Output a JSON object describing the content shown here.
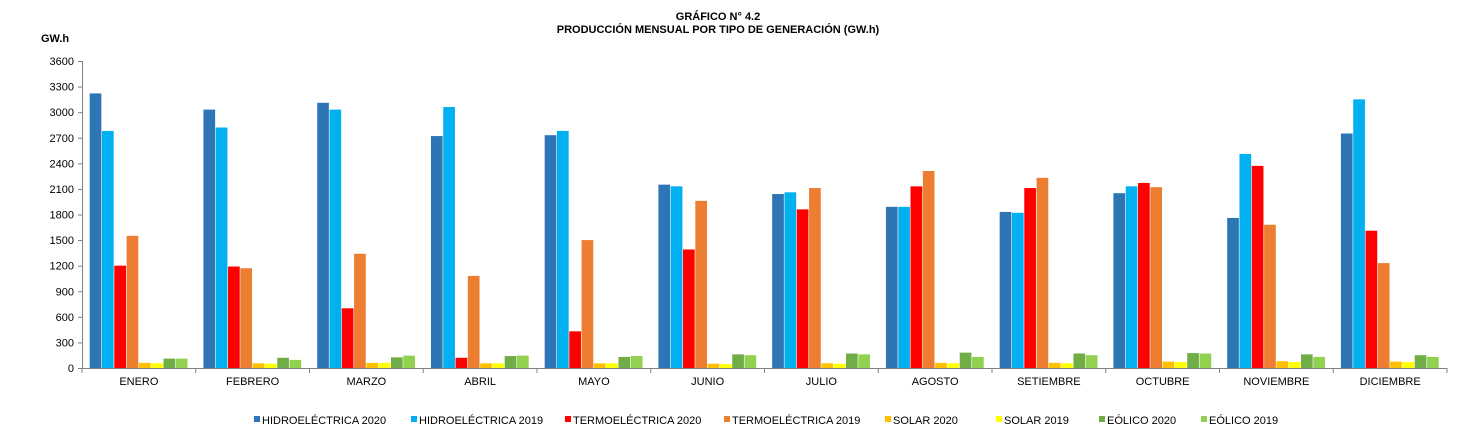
{
  "chart_data": {
    "type": "bar",
    "title": "GRÁFICO N° 4.2",
    "subtitle": "PRODUCCIÓN MENSUAL POR TIPO DE GENERACIÓN (GW.h)",
    "ylabel": "GW.h",
    "xlabel": "",
    "ylim": [
      0,
      3600
    ],
    "yticks": [
      0,
      300,
      600,
      900,
      1200,
      1500,
      1800,
      2100,
      2400,
      2700,
      3000,
      3300,
      3600
    ],
    "grid": false,
    "legend_position": "bottom",
    "categories": [
      "ENERO",
      "FEBRERO",
      "MARZO",
      "ABRIL",
      "MAYO",
      "JUNIO",
      "JULIO",
      "AGOSTO",
      "SETIEMBRE",
      "OCTUBRE",
      "NOVIEMBRE",
      "DICIEMBRE"
    ],
    "series": [
      {
        "name": "HIDROELÉCTRICA 2020",
        "color": "#2e75b6",
        "values": [
          3220,
          3030,
          3110,
          2720,
          2730,
          2150,
          2040,
          1890,
          1830,
          2050,
          1760,
          2750
        ]
      },
      {
        "name": "HIDROELÉCTRICA 2019",
        "color": "#00b0f0",
        "values": [
          2780,
          2820,
          3030,
          3060,
          2780,
          2130,
          2060,
          1890,
          1820,
          2130,
          2510,
          3150
        ]
      },
      {
        "name": "TERMOELÉCTRICA 2020",
        "color": "#ff0000",
        "values": [
          1200,
          1190,
          700,
          120,
          430,
          1390,
          1860,
          2130,
          2110,
          2170,
          2370,
          1610
        ]
      },
      {
        "name": "TERMOELÉCTRICA 2019",
        "color": "#ed7d31",
        "values": [
          1550,
          1170,
          1340,
          1080,
          1500,
          1960,
          2110,
          2310,
          2230,
          2120,
          1680,
          1230
        ]
      },
      {
        "name": "SOLAR 2020",
        "color": "#ffc000",
        "values": [
          60,
          55,
          60,
          55,
          55,
          50,
          55,
          60,
          60,
          75,
          80,
          75
        ]
      },
      {
        "name": "SOLAR 2019",
        "color": "#ffff00",
        "values": [
          55,
          50,
          60,
          55,
          55,
          45,
          50,
          55,
          55,
          70,
          70,
          70
        ]
      },
      {
        "name": "EÓLICO 2020",
        "color": "#70ad47",
        "values": [
          110,
          120,
          125,
          140,
          130,
          160,
          170,
          180,
          170,
          175,
          160,
          150
        ]
      },
      {
        "name": "EÓLICO 2019",
        "color": "#92d050",
        "values": [
          110,
          95,
          145,
          145,
          140,
          150,
          160,
          130,
          150,
          170,
          130,
          130
        ]
      }
    ]
  }
}
